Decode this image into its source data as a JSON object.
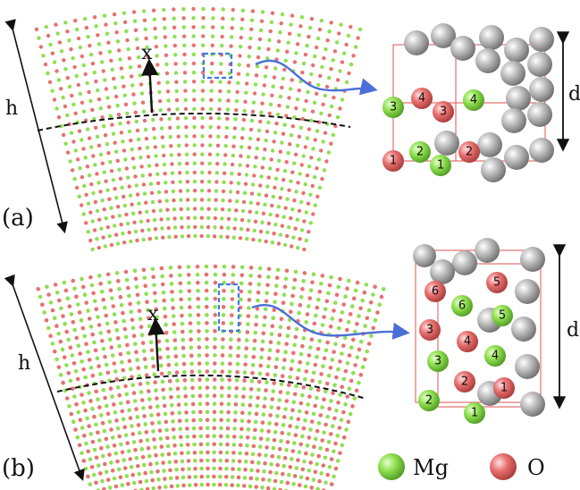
{
  "panels": [
    {
      "label": "(a)",
      "height_label": "h",
      "x_label": "x",
      "depth_label": "d",
      "atom_numbers_mg": [
        "3",
        "4",
        "2",
        "1"
      ],
      "atom_numbers_o": [
        "4",
        "3",
        "1",
        "2"
      ]
    },
    {
      "label": "(b)",
      "height_label": "h",
      "x_label": "x",
      "depth_label": "d",
      "atom_numbers_mg": [
        "6",
        "5",
        "3",
        "4",
        "2",
        "1"
      ],
      "atom_numbers_o": [
        "6",
        "5",
        "3",
        "4",
        "2",
        "1"
      ]
    }
  ],
  "legend": {
    "mg_label": "Mg",
    "o_label": "O"
  },
  "colors": {
    "mg": "#8fe050",
    "o": "#e87070",
    "host": "#b8b8b8",
    "selection_box": "#3a7ee0",
    "cell_lines": "#e05050",
    "arrow": "#4a6fd6"
  }
}
